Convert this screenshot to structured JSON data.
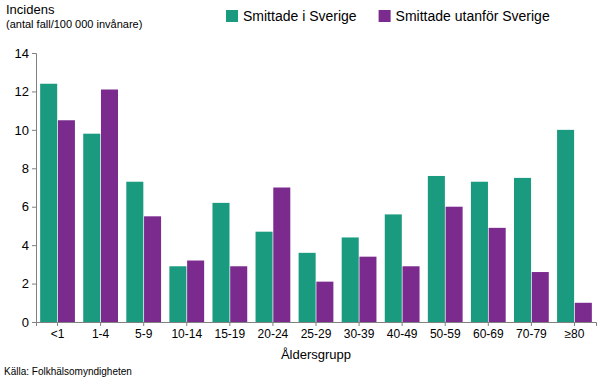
{
  "chart_data": {
    "type": "bar",
    "y_label": [
      "Incidens",
      "(antal fall/100 000 invånare)"
    ],
    "x_label": "Åldersgrupp",
    "source": "Källa: Folkhälsomyndigheten",
    "categories": [
      "<1",
      "1-4",
      "5-9",
      "10-14",
      "15-19",
      "20-24",
      "25-29",
      "30-39",
      "40-49",
      "50-59",
      "60-69",
      "70-79",
      "≥80"
    ],
    "series": [
      {
        "name": "Smittade i Sverige",
        "color": "#1a9a7e",
        "values": [
          12.4,
          9.8,
          7.3,
          2.9,
          6.2,
          4.7,
          3.6,
          4.4,
          5.6,
          7.6,
          7.3,
          7.5,
          10.0
        ]
      },
      {
        "name": "Smittade utanför Sverige",
        "color": "#7b2a8e",
        "values": [
          10.5,
          12.1,
          5.5,
          3.2,
          2.9,
          7.0,
          2.1,
          3.4,
          2.9,
          6.0,
          4.9,
          2.6,
          1.0
        ]
      }
    ],
    "ylim": [
      0,
      14
    ],
    "yticks": [
      0,
      2,
      4,
      6,
      8,
      10,
      12,
      14
    ],
    "grid": false,
    "legend": "top"
  }
}
